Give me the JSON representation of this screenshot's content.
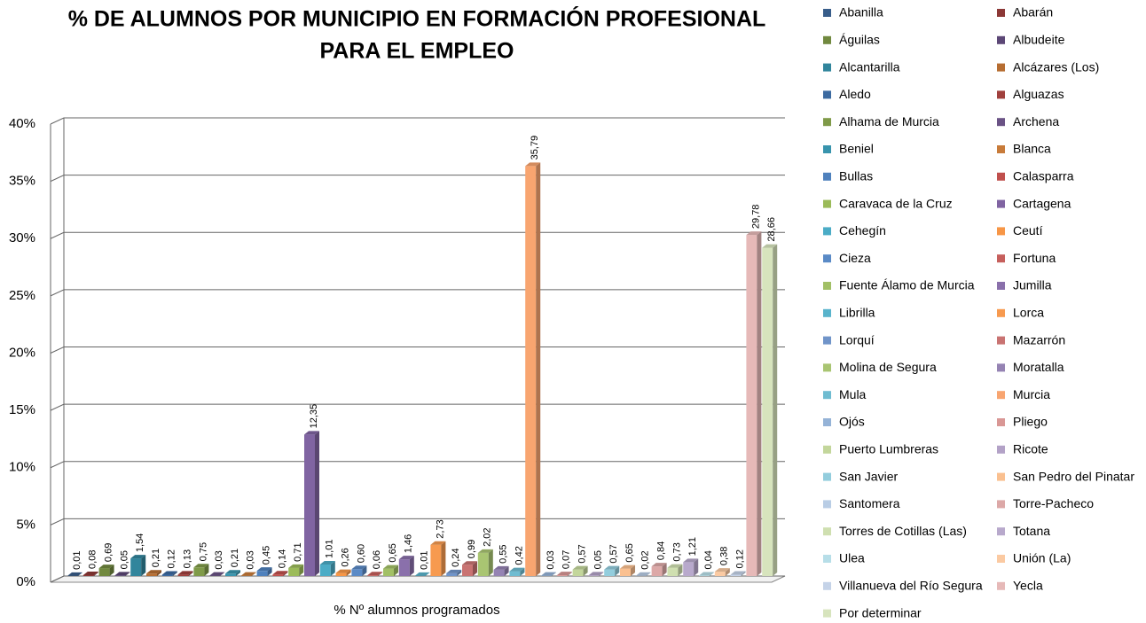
{
  "chart_data": {
    "type": "bar3d",
    "title": [
      "% DE ALUMNOS POR MUNICIPIO EN FORMACIÓN PROFESIONAL",
      "PARA EL EMPLEO"
    ],
    "categories": [
      "% Nº alumnos programados"
    ],
    "ylim": [
      0,
      40
    ],
    "yticks": [
      {
        "value": 0,
        "label": "0%"
      },
      {
        "value": 5,
        "label": "5%"
      },
      {
        "value": 10,
        "label": "10%"
      },
      {
        "value": 15,
        "label": "15%"
      },
      {
        "value": 20,
        "label": "20%"
      },
      {
        "value": 25,
        "label": "25%"
      },
      {
        "value": 30,
        "label": "30%"
      },
      {
        "value": 35,
        "label": "35%"
      },
      {
        "value": 40,
        "label": "40%"
      }
    ],
    "grid": true,
    "legend": "right",
    "series": [
      {
        "name": "Abanilla",
        "color": "#385d8a",
        "values": [
          0.01
        ],
        "value_labels": [
          "0,01"
        ]
      },
      {
        "name": "Abarán",
        "color": "#8c3836",
        "values": [
          0.08
        ],
        "value_labels": [
          "0,08"
        ]
      },
      {
        "name": "Águilas",
        "color": "#71893f",
        "values": [
          0.69
        ],
        "value_labels": [
          "0,69"
        ]
      },
      {
        "name": "Albudeite",
        "color": "#5c4776",
        "values": [
          0.05
        ],
        "value_labels": [
          "0,05"
        ]
      },
      {
        "name": "Alcantarilla",
        "color": "#31859c",
        "values": [
          1.54
        ],
        "value_labels": [
          "1,54"
        ]
      },
      {
        "name": "Alcázares (Los)",
        "color": "#b66d31",
        "values": [
          0.21
        ],
        "value_labels": [
          "0,21"
        ]
      },
      {
        "name": "Aledo",
        "color": "#3c6aa0",
        "values": [
          0.12
        ],
        "value_labels": [
          "0,12"
        ]
      },
      {
        "name": "Alguazas",
        "color": "#a0403d",
        "values": [
          0.13
        ],
        "value_labels": [
          "0,13"
        ]
      },
      {
        "name": "Alhama de Murcia",
        "color": "#7f9a48",
        "values": [
          0.75
        ],
        "value_labels": [
          "0,75"
        ]
      },
      {
        "name": "Archena",
        "color": "#6a5285",
        "values": [
          0.03
        ],
        "value_labels": [
          "0,03"
        ]
      },
      {
        "name": "Beniel",
        "color": "#3894ad",
        "values": [
          0.21
        ],
        "value_labels": [
          "0,21"
        ]
      },
      {
        "name": "Blanca",
        "color": "#c87b3a",
        "values": [
          0.03
        ],
        "value_labels": [
          "0,03"
        ]
      },
      {
        "name": "Bullas",
        "color": "#4f81bd",
        "values": [
          0.45
        ],
        "value_labels": [
          "0,45"
        ]
      },
      {
        "name": "Calasparra",
        "color": "#c0504d",
        "values": [
          0.14
        ],
        "value_labels": [
          "0,14"
        ]
      },
      {
        "name": "Caravaca de la Cruz",
        "color": "#9bbb59",
        "values": [
          0.71
        ],
        "value_labels": [
          "0,71"
        ]
      },
      {
        "name": "Cartagena",
        "color": "#8064a2",
        "values": [
          12.35
        ],
        "value_labels": [
          "12,35"
        ]
      },
      {
        "name": "Cehegín",
        "color": "#4bacc6",
        "values": [
          1.01
        ],
        "value_labels": [
          "1,01"
        ]
      },
      {
        "name": "Ceutí",
        "color": "#f79646",
        "values": [
          0.26
        ],
        "value_labels": [
          "0,26"
        ]
      },
      {
        "name": "Cieza",
        "color": "#5a8ac6",
        "values": [
          0.6
        ],
        "value_labels": [
          "0,60"
        ]
      },
      {
        "name": "Fortuna",
        "color": "#c65f5c",
        "values": [
          0.06
        ],
        "value_labels": [
          "0,06"
        ]
      },
      {
        "name": "Fuente Álamo de Murcia",
        "color": "#a2c066",
        "values": [
          0.65
        ],
        "value_labels": [
          "0,65"
        ]
      },
      {
        "name": "Jumilla",
        "color": "#8a70ab",
        "values": [
          1.46
        ],
        "value_labels": [
          "1,46"
        ]
      },
      {
        "name": "Librilla",
        "color": "#59b4cc",
        "values": [
          0.01
        ],
        "value_labels": [
          "0,01"
        ]
      },
      {
        "name": "Lorca",
        "color": "#f79a4f",
        "values": [
          2.73
        ],
        "value_labels": [
          "2,73"
        ]
      },
      {
        "name": "Lorquí",
        "color": "#7094c9",
        "values": [
          0.24
        ],
        "value_labels": [
          "0,24"
        ]
      },
      {
        "name": "Mazarrón",
        "color": "#c97372",
        "values": [
          0.99
        ],
        "value_labels": [
          "0,99"
        ]
      },
      {
        "name": "Molina de Segura",
        "color": "#a9c572",
        "values": [
          2.02
        ],
        "value_labels": [
          "2,02"
        ]
      },
      {
        "name": "Moratalla",
        "color": "#9583b3",
        "values": [
          0.55
        ],
        "value_labels": [
          "0,55"
        ]
      },
      {
        "name": "Mula",
        "color": "#6fbcd1",
        "values": [
          0.42
        ],
        "value_labels": [
          "0,42"
        ]
      },
      {
        "name": "Murcia",
        "color": "#f8a570",
        "values": [
          35.79
        ],
        "value_labels": [
          "35,79"
        ]
      },
      {
        "name": "Ojós",
        "color": "#95b3d7",
        "values": [
          0.03
        ],
        "value_labels": [
          "0,03"
        ]
      },
      {
        "name": "Pliego",
        "color": "#d99795",
        "values": [
          0.07
        ],
        "value_labels": [
          "0,07"
        ]
      },
      {
        "name": "Puerto Lumbreras",
        "color": "#c3d69b",
        "values": [
          0.57
        ],
        "value_labels": [
          "0,57"
        ]
      },
      {
        "name": "Ricote",
        "color": "#b3a2c7",
        "values": [
          0.05
        ],
        "value_labels": [
          "0,05"
        ]
      },
      {
        "name": "San Javier",
        "color": "#93cddd",
        "values": [
          0.57
        ],
        "value_labels": [
          "0,57"
        ]
      },
      {
        "name": "San Pedro del Pinatar",
        "color": "#fac090",
        "values": [
          0.65
        ],
        "value_labels": [
          "0,65"
        ]
      },
      {
        "name": "Santomera",
        "color": "#b9cde5",
        "values": [
          0.02
        ],
        "value_labels": [
          "0,02"
        ]
      },
      {
        "name": "Torre-Pacheco",
        "color": "#dca8a7",
        "values": [
          0.84
        ],
        "value_labels": [
          "0,84"
        ]
      },
      {
        "name": "Torres de Cotillas (Las)",
        "color": "#cfdfb0",
        "values": [
          0.73
        ],
        "value_labels": [
          "0,73"
        ]
      },
      {
        "name": "Totana",
        "color": "#b8a9cc",
        "values": [
          1.21
        ],
        "value_labels": [
          "1,21"
        ]
      },
      {
        "name": "Ulea",
        "color": "#b7dee8",
        "values": [
          0.04
        ],
        "value_labels": [
          "0,04"
        ]
      },
      {
        "name": "Unión (La)",
        "color": "#fbcaa2",
        "values": [
          0.38
        ],
        "value_labels": [
          "0,38"
        ]
      },
      {
        "name": "Villanueva del Río Segura",
        "color": "#c5d3e8",
        "values": [
          0.12
        ],
        "value_labels": [
          "0,12"
        ]
      },
      {
        "name": "Yecla",
        "color": "#e6b9b8",
        "values": [
          29.78
        ],
        "value_labels": [
          "29,78"
        ]
      },
      {
        "name": "Por determinar",
        "color": "#d7e4bd",
        "values": [
          28.66
        ],
        "value_labels": [
          "28,66"
        ]
      }
    ]
  }
}
